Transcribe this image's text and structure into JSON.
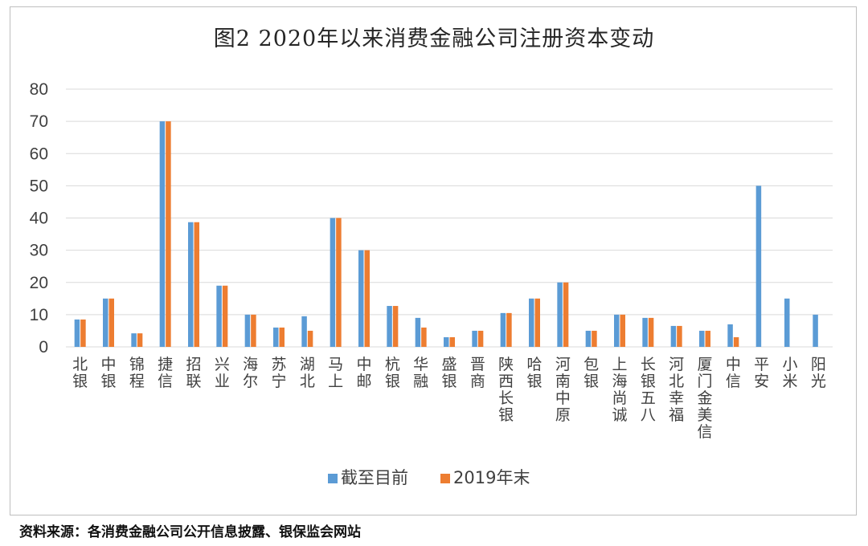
{
  "chart_data": {
    "type": "bar",
    "title": "图2  2020年以来消费金融公司注册资本变动",
    "categories": [
      "北银",
      "中银",
      "锦程",
      "捷信",
      "招联",
      "兴业",
      "海尔",
      "苏宁",
      "湖北",
      "马上",
      "中邮",
      "杭银",
      "华融",
      "盛银",
      "晋商",
      "陕西长银",
      "哈银",
      "河南中原",
      "包银",
      "上海尚诚",
      "长银五八",
      "河北幸福",
      "厦门金美信",
      "中信",
      "平安",
      "小米",
      "阳光"
    ],
    "series": [
      {
        "name": "截至目前",
        "color": "#5B9BD5",
        "values": [
          8.5,
          15,
          4.2,
          70,
          38.7,
          19,
          10,
          6,
          9.5,
          40,
          30,
          12.7,
          9,
          3,
          5,
          10.5,
          15,
          20,
          5,
          10,
          9,
          6.5,
          5,
          7,
          50,
          15,
          10
        ]
      },
      {
        "name": "2019年末",
        "color": "#ED7D31",
        "values": [
          8.5,
          15,
          4.2,
          70,
          38.7,
          19,
          10,
          6,
          5,
          40,
          30,
          12.7,
          6,
          3,
          5,
          10.5,
          15,
          20,
          5,
          10,
          9,
          6.5,
          5,
          3,
          null,
          null,
          null
        ]
      }
    ],
    "ylim": [
      0,
      80
    ],
    "yticks": [
      0,
      10,
      20,
      30,
      40,
      50,
      60,
      70,
      80
    ],
    "grid": true,
    "legend": "bottom-center"
  },
  "source_note": "资料来源：各消费金融公司公开信息披露、银保监会网站"
}
